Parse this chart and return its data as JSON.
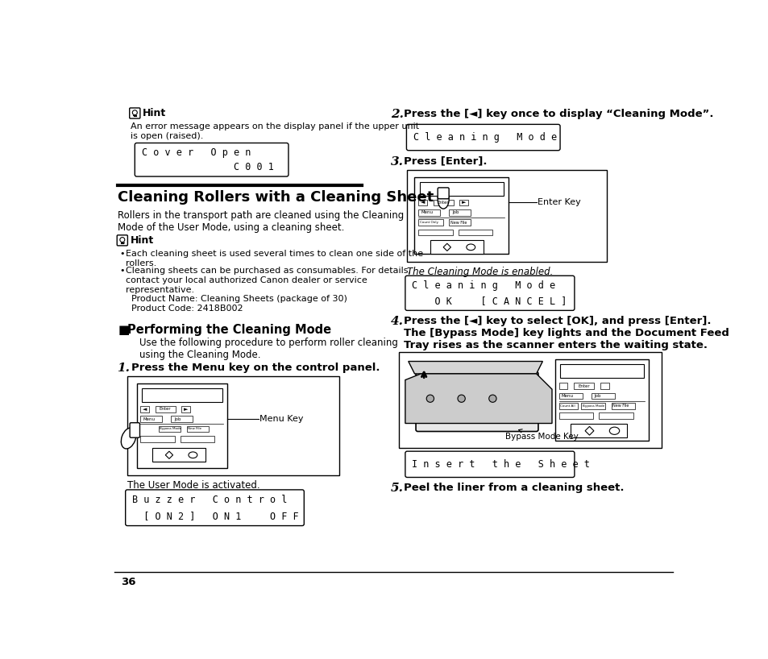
{
  "page_bg": "#ffffff",
  "page_num": "36",
  "hint1_title": "Hint",
  "hint1_text": "An error message appears on the display panel if the upper unit\nis open (raised).",
  "cover_line1": "C o v e r   O p e n",
  "cover_line2": "                C 0 0 1",
  "section_title": "Cleaning Rollers with a Cleaning Sheet",
  "section_intro": "Rollers in the transport path are cleaned using the Cleaning\nMode of the User Mode, using a cleaning sheet.",
  "hint2_title": "Hint",
  "bullet1": "Each cleaning sheet is used several times to clean one side of the\nrollers.",
  "bullet2": "Cleaning sheets can be purchased as consumables. For details,\ncontact your local authorized Canon dealer or service\nrepresentative.\n  Product Name: Cleaning Sheets (package of 30)\n  Product Code: 2418B002",
  "performing_title": "Performing the Cleaning Mode",
  "performing_intro": "Use the following procedure to perform roller cleaning\nusing the Cleaning Mode.",
  "step1_text": "Press the Menu key on the control panel.",
  "menu_key_label": "Menu Key",
  "activated_text": "The User Mode is activated.",
  "buzzer_line1": "B u z z e r   C o n t r o l",
  "buzzer_line2": "  [ O N 2 ]   O N 1     O F F",
  "step2_text": "Press the [◄] key once to display “Cleaning Mode”.",
  "cm_line1": "C l e a n i n g   M o d e",
  "step3_text": "Press [Enter].",
  "enter_key_label": "Enter Key",
  "enabled_text": "The Cleaning Mode is enabled.",
  "cm2_line1": "C l e a n i n g   M o d e",
  "cm2_line2": "    O K     [ C A N C E L ]",
  "step4_text": "Press the [◄] key to select [OK], and press [Enter].\nThe [Bypass Mode] key lights and the Document Feed\nTray rises as the scanner enters the waiting state.",
  "bypass_key_label": "Bypass Mode Key",
  "insert_line1": "I n s e r t   t h e   S h e e t",
  "step5_text": "Peel the liner from a cleaning sheet."
}
